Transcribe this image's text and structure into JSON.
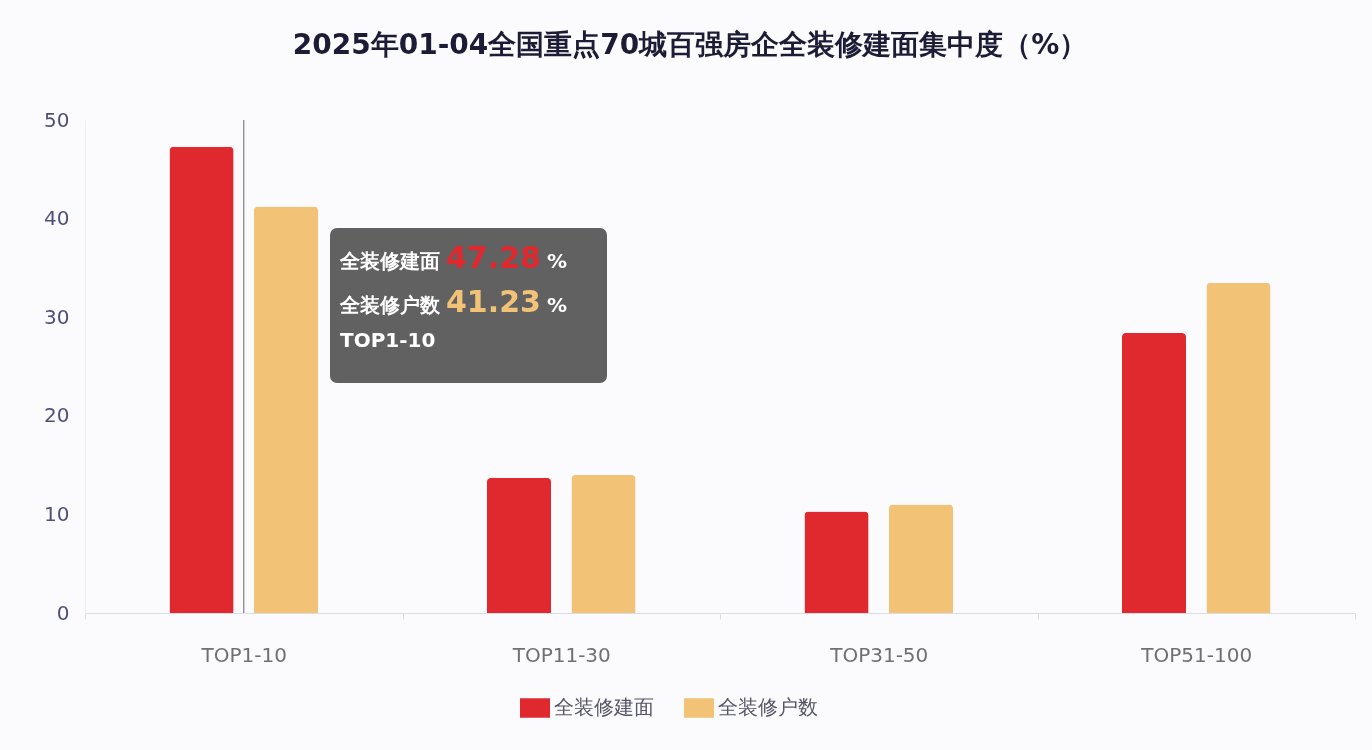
{
  "chart_data": {
    "type": "bar",
    "title": "2025年01-04全国重点70城百强房企全装修建面集中度（%）",
    "categories": [
      "TOP1-10",
      "TOP11-30",
      "TOP31-50",
      "TOP51-100"
    ],
    "series": [
      {
        "name": "全装修建面",
        "color": "#e0292f",
        "values": [
          47.28,
          13.7,
          10.3,
          28.4
        ]
      },
      {
        "name": "全装修户数",
        "color": "#f2c276",
        "values": [
          41.23,
          14.0,
          11.0,
          33.5
        ]
      }
    ],
    "ylim": [
      0,
      50
    ],
    "yticks": [
      0,
      10,
      20,
      30,
      40,
      50
    ],
    "legend": "bottom",
    "ref_lines": [
      {
        "axis": "x",
        "value": "TOP1-10",
        "color": "#808080"
      }
    ],
    "annotations": [
      "全装修建面 47.28 %",
      "全装修户数 41.23 %",
      "TOP1-10"
    ]
  }
}
